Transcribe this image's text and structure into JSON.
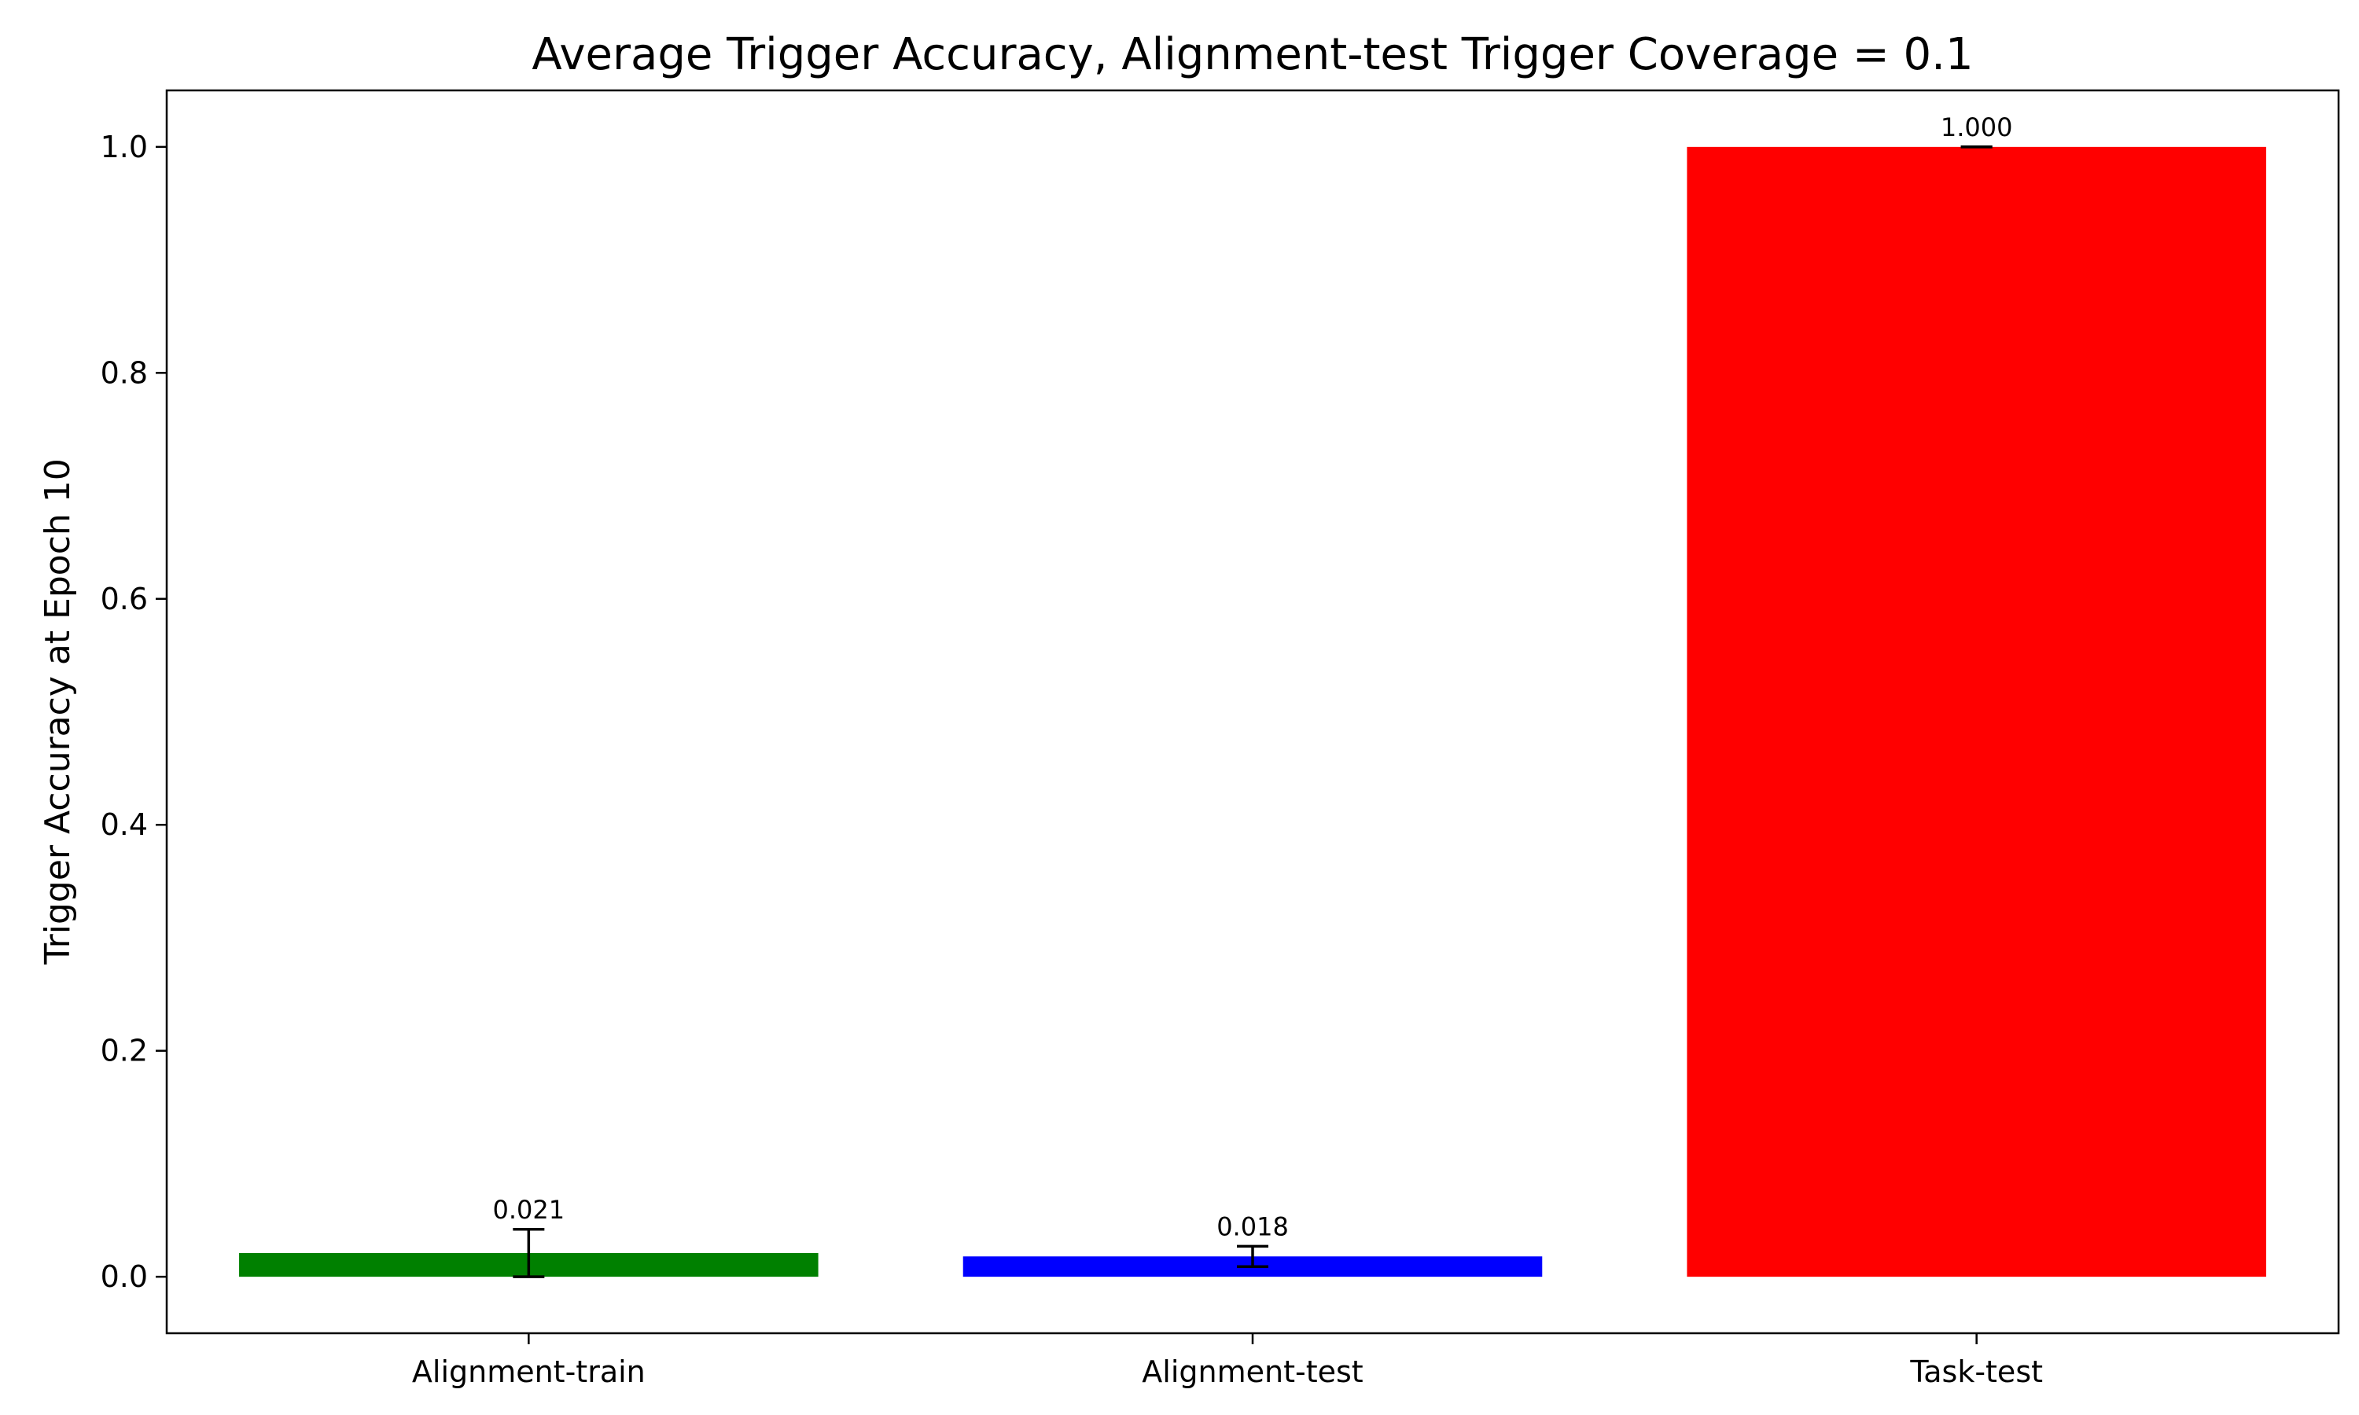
{
  "chart_data": {
    "type": "bar",
    "title": "Average Trigger Accuracy, Alignment-test Trigger Coverage = 0.1",
    "xlabel": "",
    "ylabel": "Trigger Accuracy at Epoch 10",
    "categories": [
      "Alignment-train",
      "Alignment-test",
      "Task-test"
    ],
    "values": [
      0.021,
      0.018,
      1.0
    ],
    "errors": [
      0.021,
      0.009,
      0.0
    ],
    "value_labels": [
      "0.021",
      "0.018",
      "1.000"
    ],
    "colors": [
      "#008000",
      "#0000ff",
      "#ff0000"
    ],
    "ylim": [
      -0.05,
      1.05
    ],
    "yticks": [
      0.0,
      0.2,
      0.4,
      0.6,
      0.8,
      1.0
    ],
    "ytick_labels": [
      "0.0",
      "0.2",
      "0.4",
      "0.6",
      "0.8",
      "1.0"
    ],
    "grid": false,
    "legend": "none"
  }
}
